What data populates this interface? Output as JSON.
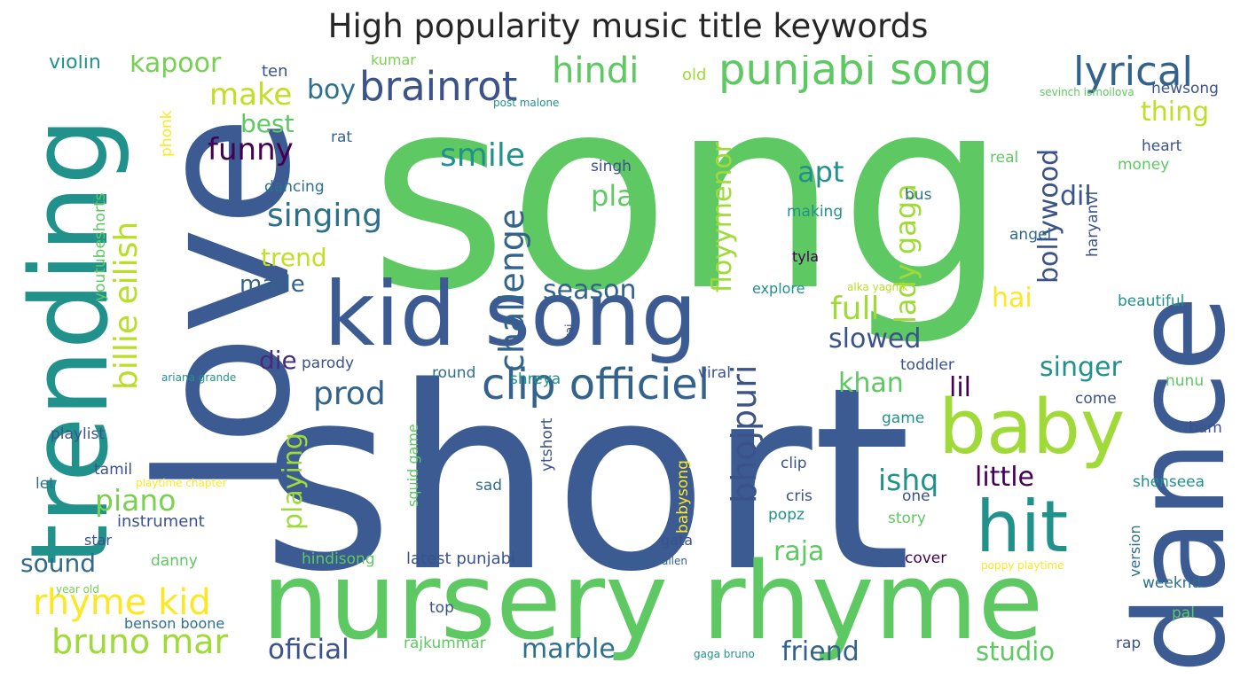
{
  "title": "High popularity music title keywords",
  "colors": {
    "background": "#ffffff",
    "title": "#262626",
    "palette": [
      "#440154",
      "#3b528b",
      "#21918c",
      "#5ec962",
      "#fde725"
    ]
  },
  "words": [
    {
      "text": "song",
      "color": "#5ec962"
    },
    {
      "text": "short",
      "color": "#3b5b92"
    },
    {
      "text": "love",
      "color": "#3b5b92"
    },
    {
      "text": "nursery rhyme",
      "color": "#5ec962"
    },
    {
      "text": "kid song",
      "color": "#3b5b92"
    },
    {
      "text": "dance",
      "color": "#3b5b92"
    },
    {
      "text": "trending",
      "color": "#21918c"
    },
    {
      "text": "baby",
      "color": "#a0da39"
    },
    {
      "text": "hit",
      "color": "#21918c"
    },
    {
      "text": "punjabi song",
      "color": "#5ec962"
    },
    {
      "text": "clip officiel",
      "color": "#33638d"
    },
    {
      "text": "brainrot",
      "color": "#3b528b"
    },
    {
      "text": "lyrical",
      "color": "#33638d"
    },
    {
      "text": "hindi",
      "color": "#5ec962"
    },
    {
      "text": "billie eilish",
      "color": "#b8de29"
    },
    {
      "text": "challenge",
      "color": "#33638d"
    },
    {
      "text": "singing",
      "color": "#2d708e"
    },
    {
      "text": "smile",
      "color": "#21918c"
    },
    {
      "text": "rhyme kid",
      "color": "#fde725"
    },
    {
      "text": "bruno mar",
      "color": "#a0da39"
    },
    {
      "text": "bhojpuri",
      "color": "#3b528b"
    },
    {
      "text": "floyymenor",
      "color": "#a0da39"
    },
    {
      "text": "lady gaga",
      "color": "#a0da39"
    },
    {
      "text": "bollywood",
      "color": "#3b528b"
    },
    {
      "text": "funny",
      "color": "#440154"
    },
    {
      "text": "make",
      "color": "#c2df23"
    },
    {
      "text": "kapoor",
      "color": "#75d054"
    },
    {
      "text": "boy",
      "color": "#2d708e"
    },
    {
      "text": "prod",
      "color": "#33638d"
    },
    {
      "text": "play",
      "color": "#5ec962"
    },
    {
      "text": "apt",
      "color": "#21918c"
    },
    {
      "text": "full",
      "color": "#a0da39"
    },
    {
      "text": "slowed",
      "color": "#3b528b"
    },
    {
      "text": "singer",
      "color": "#21918c"
    },
    {
      "text": "thing",
      "color": "#bddf26"
    },
    {
      "text": "dil",
      "color": "#3b528b"
    },
    {
      "text": "ishq",
      "color": "#21918c"
    },
    {
      "text": "little",
      "color": "#440154"
    },
    {
      "text": "playing",
      "color": "#a0da39"
    },
    {
      "text": "piano",
      "color": "#7ad151"
    },
    {
      "text": "oficial",
      "color": "#3b528b"
    },
    {
      "text": "friend",
      "color": "#33638d"
    },
    {
      "text": "studio",
      "color": "#5ec962"
    },
    {
      "text": "marble",
      "color": "#2d708e"
    },
    {
      "text": "raja",
      "color": "#5ec962"
    },
    {
      "text": "khan",
      "color": "#5ec962"
    },
    {
      "text": "lil",
      "color": "#440154"
    },
    {
      "text": "hai",
      "color": "#fde725"
    },
    {
      "text": "season",
      "color": "#33638d"
    },
    {
      "text": "trend",
      "color": "#c2df23"
    },
    {
      "text": "best",
      "color": "#5ec962"
    },
    {
      "text": "made",
      "color": "#33638d"
    },
    {
      "text": "die",
      "color": "#472d7b"
    },
    {
      "text": "sound",
      "color": "#31688e"
    },
    {
      "text": "violin",
      "color": "#21918c"
    },
    {
      "text": "ten",
      "color": "#3b528b"
    },
    {
      "text": "kumar",
      "color": "#7ad151"
    },
    {
      "text": "old",
      "color": "#a0da39"
    },
    {
      "text": "post malone",
      "color": "#21918c"
    },
    {
      "text": "sevinch ismoilova",
      "color": "#5ec962"
    },
    {
      "text": "newsong",
      "color": "#3b528b"
    },
    {
      "text": "heart",
      "color": "#3b528b"
    },
    {
      "text": "money",
      "color": "#5ec962"
    },
    {
      "text": "phonk",
      "color": "#fde725"
    },
    {
      "text": "rat",
      "color": "#33638d"
    },
    {
      "text": "singh",
      "color": "#3b528b"
    },
    {
      "text": "dancing",
      "color": "#2d708e"
    },
    {
      "text": "making",
      "color": "#21918c"
    },
    {
      "text": "real",
      "color": "#5ec962"
    },
    {
      "text": "bus",
      "color": "#2d708e"
    },
    {
      "text": "haryanvi",
      "color": "#3b528b"
    },
    {
      "text": "angel",
      "color": "#31688e"
    },
    {
      "text": "tyla",
      "color": "#440154"
    },
    {
      "text": "explore",
      "color": "#21918c"
    },
    {
      "text": "alka yagnik",
      "color": "#b8de29"
    },
    {
      "text": "beautiful",
      "color": "#21918c"
    },
    {
      "text": "youtubeshorts",
      "color": "#5ec962"
    },
    {
      "text": "parody",
      "color": "#3b528b"
    },
    {
      "text": "round",
      "color": "#2d708e"
    },
    {
      "text": "viral",
      "color": "#3b528b"
    },
    {
      "text": "toddler",
      "color": "#3b528b"
    },
    {
      "text": "shreya",
      "color": "#21918c"
    },
    {
      "text": "kai",
      "color": "#3b528b"
    },
    {
      "text": "ariana grande",
      "color": "#21918c"
    },
    {
      "text": "nunu",
      "color": "#5ec962"
    },
    {
      "text": "squid game",
      "color": "#5ec962"
    },
    {
      "text": "come",
      "color": "#3b528b"
    },
    {
      "text": "game",
      "color": "#21918c"
    },
    {
      "text": "playlist",
      "color": "#3b528b"
    },
    {
      "text": "tamil",
      "color": "#3b528b"
    },
    {
      "text": "clip",
      "color": "#3b528b"
    },
    {
      "text": "ytshort",
      "color": "#3b528b"
    },
    {
      "text": "babysong",
      "color": "#fde725"
    },
    {
      "text": "bam",
      "color": "#3b528b"
    },
    {
      "text": "playtime chapter",
      "color": "#fde725"
    },
    {
      "text": "let",
      "color": "#2d708e"
    },
    {
      "text": "sad",
      "color": "#2d708e"
    },
    {
      "text": "cris",
      "color": "#3b528b"
    },
    {
      "text": "popz",
      "color": "#21918c"
    },
    {
      "text": "one",
      "color": "#3b528b"
    },
    {
      "text": "story",
      "color": "#5ec962"
    },
    {
      "text": "shenseea",
      "color": "#21918c"
    },
    {
      "text": "instrument",
      "color": "#3b528b"
    },
    {
      "text": "star",
      "color": "#3b528b"
    },
    {
      "text": "gata",
      "color": "#3b528b"
    },
    {
      "text": "version",
      "color": "#2d708e"
    },
    {
      "text": "danny",
      "color": "#5ec962"
    },
    {
      "text": "hindisong",
      "color": "#5ec962"
    },
    {
      "text": "latest punjabi",
      "color": "#3b528b"
    },
    {
      "text": "morgan wallen",
      "color": "#33638d"
    },
    {
      "text": "cover",
      "color": "#440154"
    },
    {
      "text": "poppy playtime",
      "color": "#fde725"
    },
    {
      "text": "weeknd",
      "color": "#2d708e"
    },
    {
      "text": "year old",
      "color": "#75d054"
    },
    {
      "text": "top",
      "color": "#3b528b"
    },
    {
      "text": "benson boone",
      "color": "#2d708e"
    },
    {
      "text": "rajkummar",
      "color": "#5ec962"
    },
    {
      "text": "gaga bruno",
      "color": "#21918c"
    },
    {
      "text": "rap",
      "color": "#3b528b"
    },
    {
      "text": "pal",
      "color": "#5ec962"
    }
  ]
}
